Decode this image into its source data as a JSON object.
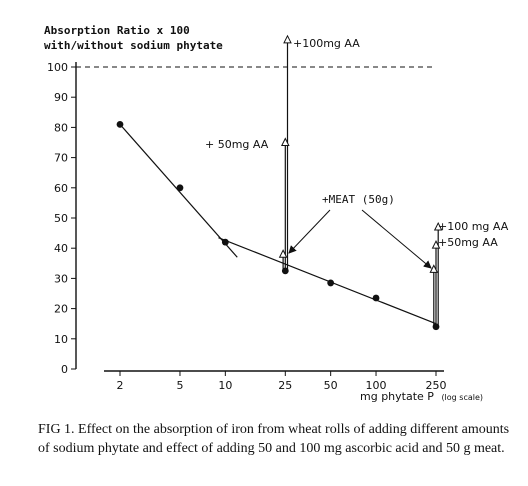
{
  "chart_data": {
    "type": "line",
    "ylabel_lines": [
      "Absorption Ratio x 100",
      "with/without sodium phytate"
    ],
    "xlabel": "mg phytate P",
    "xlabel_suffix": "(log scale)",
    "x_scale": "log",
    "x_ticks": [
      2,
      5,
      10,
      25,
      50,
      100,
      250
    ],
    "x_tick_labels": [
      "2",
      "5",
      "10",
      "25",
      "50",
      "100",
      "250"
    ],
    "y_ticks": [
      0,
      10,
      20,
      30,
      40,
      50,
      60,
      70,
      80,
      90,
      100
    ],
    "y_tick_labels": [
      "0",
      "10",
      "20",
      "30",
      "40",
      "50",
      "60",
      "70",
      "80",
      "90",
      "100"
    ],
    "ylim": [
      0,
      100
    ],
    "reference_line_y": 100,
    "series": [
      {
        "values": [
          {
            "x": 2,
            "y": 81
          },
          {
            "x": 5,
            "y": 60
          },
          {
            "x": 10,
            "y": 42
          },
          {
            "x": 25,
            "y": 32.5
          },
          {
            "x": 50,
            "y": 28.5
          },
          {
            "x": 100,
            "y": 23.5
          },
          {
            "x": 250,
            "y": 14
          }
        ]
      }
    ],
    "fit_lines": [
      {
        "from": {
          "x": 2,
          "y": 81
        },
        "to": {
          "x": 12,
          "y": 37
        }
      },
      {
        "from": {
          "x": 9,
          "y": 43.5
        },
        "to": {
          "x": 250,
          "y": 15
        }
      }
    ],
    "supplement_points": [
      {
        "x": 25,
        "y": 38,
        "marker": "triangle"
      },
      {
        "x": 25,
        "y": 75,
        "marker": "triangle"
      },
      {
        "x": 25,
        "y": 109,
        "marker": "triangle"
      },
      {
        "x": 250,
        "y": 33,
        "marker": "triangle"
      },
      {
        "x": 250,
        "y": 41,
        "marker": "triangle"
      },
      {
        "x": 250,
        "y": 47,
        "marker": "triangle"
      }
    ],
    "annotations": [
      {
        "text": "+100mg AA"
      },
      {
        "text": "+ 50mg AA"
      },
      {
        "text": "+MEAT (50g)"
      },
      {
        "text": "+100 mg AA"
      },
      {
        "text": "+50mg AA"
      }
    ],
    "grid": false
  },
  "caption": "FIG 1. Effect on the absorption of iron from wheat rolls of adding different amounts of sodium phytate and effect of adding 50 and 100 mg ascorbic acid and 50 g meat."
}
